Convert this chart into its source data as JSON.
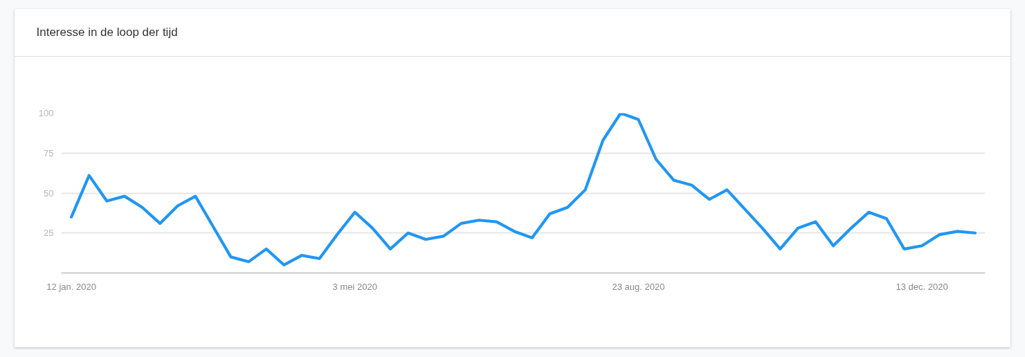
{
  "chart_data": {
    "type": "line",
    "title": "Interesse in de loop der tijd",
    "x": [
      "2020-01-12",
      "2020-01-19",
      "2020-01-26",
      "2020-02-02",
      "2020-02-09",
      "2020-02-16",
      "2020-02-23",
      "2020-03-01",
      "2020-03-08",
      "2020-03-15",
      "2020-03-22",
      "2020-03-29",
      "2020-04-05",
      "2020-04-12",
      "2020-04-19",
      "2020-04-26",
      "2020-05-03",
      "2020-05-10",
      "2020-05-17",
      "2020-05-24",
      "2020-05-31",
      "2020-06-07",
      "2020-06-14",
      "2020-06-21",
      "2020-06-28",
      "2020-07-05",
      "2020-07-12",
      "2020-07-19",
      "2020-07-26",
      "2020-08-02",
      "2020-08-09",
      "2020-08-16",
      "2020-08-23",
      "2020-08-30",
      "2020-09-06",
      "2020-09-13",
      "2020-09-20",
      "2020-09-27",
      "2020-10-04",
      "2020-10-11",
      "2020-10-18",
      "2020-10-25",
      "2020-11-01",
      "2020-11-08",
      "2020-11-15",
      "2020-11-22",
      "2020-11-29",
      "2020-12-06",
      "2020-12-13",
      "2020-12-20",
      "2020-12-27",
      "2021-01-03"
    ],
    "series": [
      {
        "color": "#2196f3",
        "values": [
          35,
          61,
          45,
          48,
          41,
          31,
          42,
          48,
          29,
          10,
          7,
          15,
          5,
          11,
          9,
          24,
          38,
          28,
          15,
          25,
          21,
          23,
          31,
          33,
          32,
          26,
          22,
          37,
          41,
          52,
          83,
          100,
          96,
          71,
          58,
          55,
          46,
          52,
          40,
          28,
          15,
          28,
          32,
          17,
          28,
          38,
          34,
          15,
          17,
          24,
          26,
          25
        ]
      }
    ],
    "xlim": [
      "2020-01-08",
      "2021-01-07"
    ],
    "xticks": [
      {
        "value": "2020-01-12",
        "label": "12 jan. 2020"
      },
      {
        "value": "2020-05-03",
        "label": "3 mei 2020"
      },
      {
        "value": "2020-08-23",
        "label": "23 aug. 2020"
      },
      {
        "value": "2020-12-13",
        "label": "13 dec. 2020"
      }
    ],
    "ylim": [
      0,
      100
    ],
    "yticks": [
      25,
      50,
      75,
      100
    ],
    "grid": "y"
  }
}
